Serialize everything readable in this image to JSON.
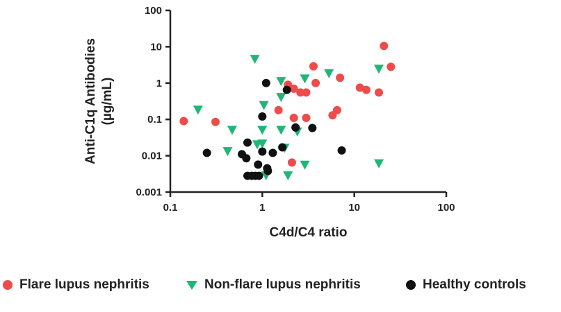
{
  "chart_data": {
    "type": "scatter",
    "title": "",
    "xlabel": "C4d/C4 ratio",
    "ylabel": "Anti-C1q Antibodies",
    "ylabel_unit": "(µg/mL)",
    "x_scale": "log",
    "y_scale": "log",
    "xlim": [
      0.1,
      100
    ],
    "ylim": [
      0.001,
      100
    ],
    "x_ticks": [
      "0.1",
      "1",
      "10",
      "100"
    ],
    "y_ticks": [
      "0.001",
      "0.01",
      "0.1",
      "1",
      "10",
      "100"
    ],
    "x_tick_values": [
      0.1,
      1,
      10,
      100
    ],
    "y_tick_values": [
      0.001,
      0.01,
      0.1,
      1,
      10,
      100
    ],
    "grid": false,
    "legend_position": "bottom",
    "series": [
      {
        "name": "Flare lupus nephritis",
        "marker": "circle",
        "color": "#ef4b4b",
        "points": [
          {
            "x": 0.14,
            "y": 0.09
          },
          {
            "x": 0.31,
            "y": 0.085
          },
          {
            "x": 1.5,
            "y": 0.18
          },
          {
            "x": 1.9,
            "y": 0.9
          },
          {
            "x": 2.1,
            "y": 0.0065
          },
          {
            "x": 2.2,
            "y": 0.7
          },
          {
            "x": 2.2,
            "y": 0.11
          },
          {
            "x": 2.6,
            "y": 0.55
          },
          {
            "x": 3.0,
            "y": 0.55
          },
          {
            "x": 3.0,
            "y": 0.11
          },
          {
            "x": 3.6,
            "y": 2.9
          },
          {
            "x": 3.8,
            "y": 1.0
          },
          {
            "x": 5.8,
            "y": 0.13
          },
          {
            "x": 6.5,
            "y": 0.18
          },
          {
            "x": 7.0,
            "y": 1.4
          },
          {
            "x": 11.5,
            "y": 0.75
          },
          {
            "x": 13.5,
            "y": 0.65
          },
          {
            "x": 18.5,
            "y": 0.55
          },
          {
            "x": 21.0,
            "y": 10.5
          },
          {
            "x": 25.0,
            "y": 2.8
          }
        ]
      },
      {
        "name": "Non-flare lupus nephritis",
        "marker": "triangle-down",
        "color": "#1db877",
        "points": [
          {
            "x": 0.2,
            "y": 0.18
          },
          {
            "x": 0.42,
            "y": 0.013
          },
          {
            "x": 0.47,
            "y": 0.05
          },
          {
            "x": 0.83,
            "y": 4.5
          },
          {
            "x": 0.88,
            "y": 0.02
          },
          {
            "x": 1.0,
            "y": 0.05
          },
          {
            "x": 1.0,
            "y": 0.021
          },
          {
            "x": 1.04,
            "y": 0.24
          },
          {
            "x": 1.1,
            "y": 0.0028
          },
          {
            "x": 1.6,
            "y": 1.1
          },
          {
            "x": 1.6,
            "y": 0.4
          },
          {
            "x": 1.6,
            "y": 0.05
          },
          {
            "x": 1.75,
            "y": 0.016
          },
          {
            "x": 1.9,
            "y": 0.0028
          },
          {
            "x": 2.4,
            "y": 0.045
          },
          {
            "x": 2.9,
            "y": 1.3
          },
          {
            "x": 2.9,
            "y": 0.0055
          },
          {
            "x": 5.3,
            "y": 1.8
          },
          {
            "x": 18.5,
            "y": 2.4
          },
          {
            "x": 18.5,
            "y": 0.006
          }
        ]
      },
      {
        "name": "Healthy controls",
        "marker": "circle",
        "color": "#111111",
        "points": [
          {
            "x": 0.25,
            "y": 0.012
          },
          {
            "x": 0.6,
            "y": 0.011
          },
          {
            "x": 0.67,
            "y": 0.0085
          },
          {
            "x": 0.69,
            "y": 0.023
          },
          {
            "x": 0.69,
            "y": 0.0028
          },
          {
            "x": 0.77,
            "y": 0.0028
          },
          {
            "x": 0.84,
            "y": 0.0028
          },
          {
            "x": 0.9,
            "y": 0.0057
          },
          {
            "x": 0.92,
            "y": 0.0028
          },
          {
            "x": 1.0,
            "y": 0.12
          },
          {
            "x": 1.0,
            "y": 0.013
          },
          {
            "x": 1.1,
            "y": 1.0
          },
          {
            "x": 1.13,
            "y": 0.0045
          },
          {
            "x": 1.15,
            "y": 0.0038
          },
          {
            "x": 1.3,
            "y": 0.012
          },
          {
            "x": 1.65,
            "y": 0.017
          },
          {
            "x": 1.85,
            "y": 0.65
          },
          {
            "x": 2.3,
            "y": 0.06
          },
          {
            "x": 3.5,
            "y": 0.058
          },
          {
            "x": 7.3,
            "y": 0.014
          }
        ]
      }
    ]
  }
}
